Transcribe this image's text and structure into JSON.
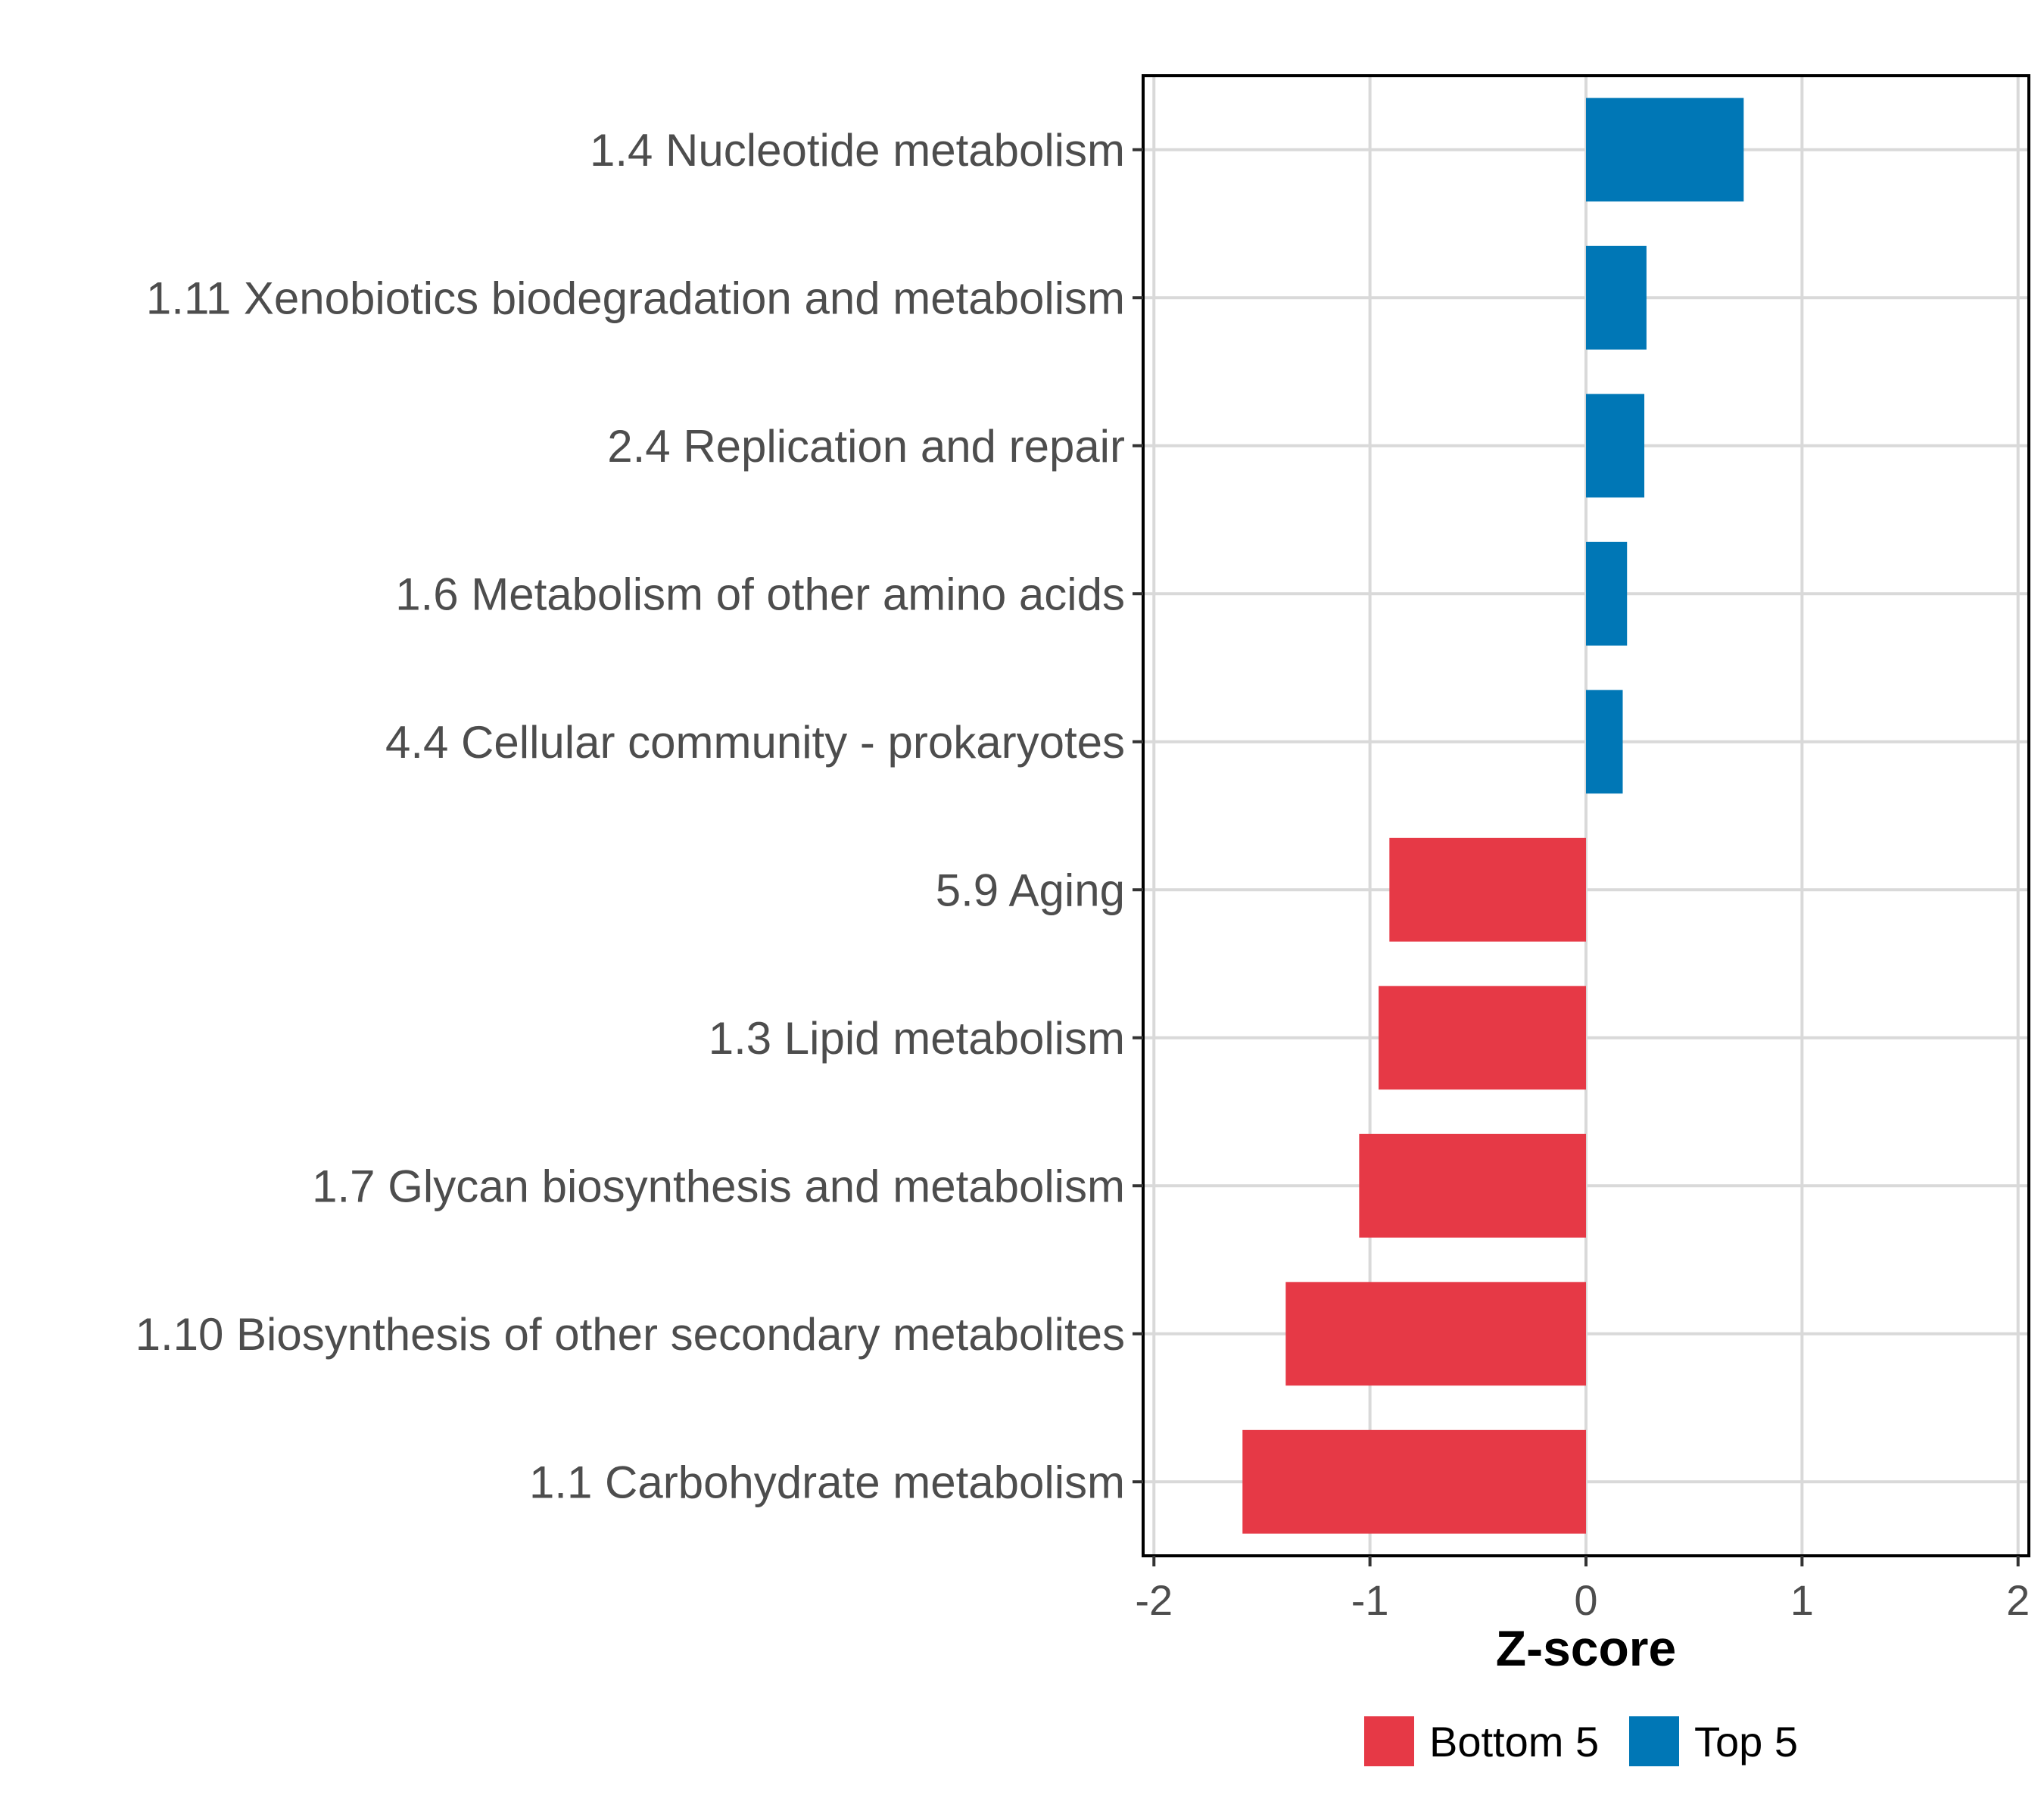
{
  "chart_data": {
    "type": "bar",
    "orientation": "horizontal",
    "title": "",
    "xlabel": "Z-score",
    "ylabel": "",
    "xlim": [
      -2.05,
      2.05
    ],
    "xticks": [
      -2,
      -1,
      0,
      1,
      2
    ],
    "xtick_labels": [
      "-2",
      "-1",
      "0",
      "1",
      "2"
    ],
    "grid": true,
    "legend_position": "bottom",
    "categories": [
      "1.4 Nucleotide metabolism",
      "1.11 Xenobiotics biodegradation and metabolism",
      "2.4 Replication and repair",
      "1.6 Metabolism of other amino acids",
      "4.4 Cellular community - prokaryotes",
      "5.9 Aging",
      "1.3 Lipid metabolism",
      "1.7 Glycan biosynthesis and metabolism",
      "1.10 Biosynthesis of other secondary metabolites",
      "1.1 Carbohydrate metabolism"
    ],
    "values": [
      0.73,
      0.28,
      0.27,
      0.19,
      0.17,
      -0.91,
      -0.96,
      -1.05,
      -1.39,
      -1.59
    ],
    "groups": [
      "Top 5",
      "Top 5",
      "Top 5",
      "Top 5",
      "Top 5",
      "Bottom 5",
      "Bottom 5",
      "Bottom 5",
      "Bottom 5",
      "Bottom 5"
    ],
    "legend": [
      {
        "label": "Bottom 5",
        "color": "#E63946"
      },
      {
        "label": "Top 5",
        "color": "#0077B6"
      }
    ]
  }
}
